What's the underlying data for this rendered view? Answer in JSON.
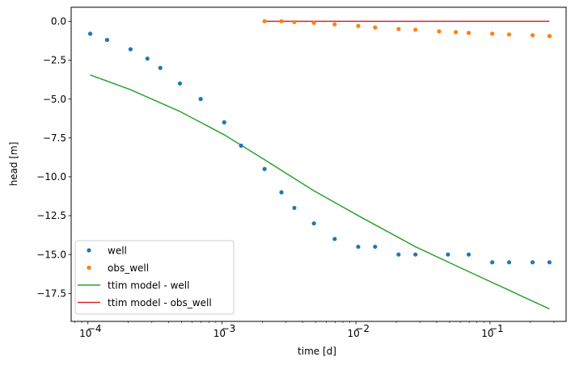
{
  "chart_data": {
    "type": "scatter",
    "xlabel": "time [d]",
    "ylabel": "head [m]",
    "xscale": "log",
    "xlim": [
      7.5e-05,
      0.37
    ],
    "ylim": [
      -19.3,
      0.9
    ],
    "grid": false,
    "legend_position": "lower-left",
    "x_ticks": [
      0.0001,
      0.001,
      0.01,
      0.1
    ],
    "x_tick_labels": [
      "10",
      "10",
      "10",
      "10"
    ],
    "x_tick_exponents": [
      "−4",
      "−3",
      "−2",
      "−1"
    ],
    "y_ticks": [
      0.0,
      -2.5,
      -5.0,
      -7.5,
      -10.0,
      -12.5,
      -15.0,
      -17.5
    ],
    "y_tick_labels": [
      "0.0",
      "−2.5",
      "−5.0",
      "−7.5",
      "−10.0",
      "−12.5",
      "−15.0",
      "−17.5"
    ],
    "series": [
      {
        "name": "well",
        "kind": "scatter",
        "color": "#1f77b4",
        "points": [
          [
            0.000104,
            -0.8
          ],
          [
            0.000139,
            -1.2
          ],
          [
            0.000208,
            -1.8
          ],
          [
            0.000278,
            -2.4
          ],
          [
            0.000347,
            -3.0
          ],
          [
            0.000486,
            -4.0
          ],
          [
            0.000694,
            -5.0
          ],
          [
            0.00104,
            -6.5
          ],
          [
            0.00139,
            -8.0
          ],
          [
            0.00208,
            -9.5
          ],
          [
            0.00278,
            -11.0
          ],
          [
            0.00347,
            -12.0
          ],
          [
            0.00486,
            -13.0
          ],
          [
            0.00694,
            -14.0
          ],
          [
            0.0104,
            -14.5
          ],
          [
            0.0139,
            -14.5
          ],
          [
            0.0208,
            -15.0
          ],
          [
            0.0278,
            -15.0
          ],
          [
            0.0486,
            -15.0
          ],
          [
            0.0694,
            -15.0
          ],
          [
            0.104,
            -15.5
          ],
          [
            0.139,
            -15.5
          ],
          [
            0.208,
            -15.5
          ],
          [
            0.278,
            -15.5
          ]
        ]
      },
      {
        "name": "obs_well",
        "kind": "scatter",
        "color": "#ff7f0e",
        "points": [
          [
            0.00208,
            0.0
          ],
          [
            0.00278,
            0.0
          ],
          [
            0.00347,
            -0.05
          ],
          [
            0.00486,
            -0.1
          ],
          [
            0.00694,
            -0.2
          ],
          [
            0.0104,
            -0.3
          ],
          [
            0.0139,
            -0.4
          ],
          [
            0.0208,
            -0.5
          ],
          [
            0.0278,
            -0.55
          ],
          [
            0.0417,
            -0.65
          ],
          [
            0.0556,
            -0.7
          ],
          [
            0.0694,
            -0.75
          ],
          [
            0.104,
            -0.8
          ],
          [
            0.139,
            -0.85
          ],
          [
            0.208,
            -0.9
          ],
          [
            0.278,
            -0.95
          ]
        ]
      },
      {
        "name": "ttim model - well",
        "kind": "line",
        "color": "#2ca02c",
        "points": [
          [
            0.000104,
            -3.45
          ],
          [
            0.000208,
            -4.4
          ],
          [
            0.000486,
            -5.8
          ],
          [
            0.00104,
            -7.3
          ],
          [
            0.00208,
            -8.9
          ],
          [
            0.00486,
            -10.9
          ],
          [
            0.0104,
            -12.5
          ],
          [
            0.0278,
            -14.5
          ],
          [
            0.0694,
            -16.1
          ],
          [
            0.139,
            -17.3
          ],
          [
            0.278,
            -18.5
          ]
        ]
      },
      {
        "name": "ttim model - obs_well",
        "kind": "line",
        "color": "#d62728",
        "points": [
          [
            0.00208,
            0.0
          ],
          [
            0.278,
            0.0
          ]
        ]
      }
    ]
  }
}
